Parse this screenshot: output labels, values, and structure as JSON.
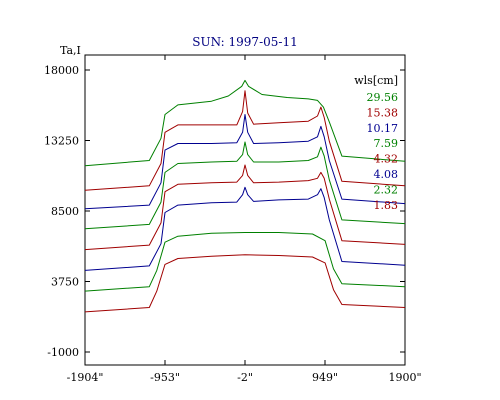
{
  "chart_data": {
    "type": "line",
    "title": "SUN: 1997-05-11",
    "ylabel": "Ta,I",
    "xlabel": "",
    "legend_title": "wls[cm]",
    "legend_position": "top-right",
    "grid": false,
    "xlim": [
      -1904,
      1900
    ],
    "ylim": [
      -1000,
      18000
    ],
    "x_ticks": [
      {
        "value": -1904,
        "label": "-1904\""
      },
      {
        "value": -953,
        "label": "-953\""
      },
      {
        "value": -2,
        "label": "-2\""
      },
      {
        "value": 949,
        "label": "949\""
      },
      {
        "value": 1900,
        "label": "1900\""
      }
    ],
    "y_ticks": [
      {
        "value": 18000,
        "label": "18000"
      },
      {
        "value": 13250,
        "label": "13250"
      },
      {
        "value": 8500,
        "label": "8500"
      },
      {
        "value": 3750,
        "label": "3750"
      },
      {
        "value": -1000,
        "label": "-1000"
      }
    ],
    "series": [
      {
        "name": "29.56",
        "color": "#008000",
        "x": [
          -1904,
          -1140,
          -1000,
          -953,
          -800,
          -400,
          -200,
          -40,
          -2,
          40,
          200,
          500,
          750,
          860,
          930,
          1000,
          1150,
          1900
        ],
        "y": [
          11550,
          11900,
          13400,
          15000,
          15650,
          15900,
          16250,
          16900,
          17300,
          16900,
          16350,
          16150,
          16050,
          15950,
          15500,
          14500,
          12200,
          11850
        ]
      },
      {
        "name": "15.38",
        "color": "#a00000",
        "x": [
          -1904,
          -1140,
          -1000,
          -953,
          -800,
          -400,
          -100,
          -30,
          -2,
          30,
          100,
          400,
          750,
          860,
          900,
          940,
          1000,
          1150,
          1900
        ],
        "y": [
          9900,
          10200,
          11700,
          13800,
          14300,
          14300,
          14300,
          15200,
          16600,
          15100,
          14350,
          14450,
          14550,
          14900,
          15500,
          14800,
          13200,
          10500,
          10200
        ]
      },
      {
        "name": "10.17",
        "color": "#000090",
        "x": [
          -1904,
          -1140,
          -1000,
          -953,
          -800,
          -400,
          -100,
          -30,
          -2,
          30,
          100,
          400,
          750,
          860,
          900,
          940,
          1000,
          1150,
          1900
        ],
        "y": [
          8650,
          8900,
          10400,
          12600,
          13050,
          13050,
          13100,
          13800,
          15000,
          13800,
          13050,
          13100,
          13200,
          13500,
          14200,
          13500,
          11900,
          9300,
          9000
        ]
      },
      {
        "name": "7.59",
        "color": "#008000",
        "x": [
          -1904,
          -1140,
          -1000,
          -953,
          -800,
          -400,
          -100,
          -30,
          -2,
          30,
          100,
          400,
          750,
          860,
          900,
          940,
          1000,
          1150,
          1900
        ],
        "y": [
          7300,
          7600,
          9100,
          11100,
          11700,
          11800,
          11850,
          12300,
          13150,
          12300,
          11800,
          11800,
          11900,
          12150,
          12800,
          12200,
          10600,
          7900,
          7650
        ]
      },
      {
        "name": "4.32",
        "color": "#a00000",
        "x": [
          -1904,
          -1140,
          -1000,
          -953,
          -800,
          -400,
          -100,
          -30,
          -2,
          30,
          100,
          400,
          750,
          860,
          900,
          940,
          1000,
          1150,
          1900
        ],
        "y": [
          5900,
          6200,
          7700,
          9800,
          10300,
          10400,
          10450,
          10900,
          11600,
          10900,
          10400,
          10450,
          10550,
          10700,
          11100,
          10700,
          9300,
          6500,
          6250
        ]
      },
      {
        "name": "4.08",
        "color": "#000090",
        "x": [
          -1904,
          -1140,
          -1000,
          -953,
          -800,
          -400,
          -100,
          -30,
          -2,
          30,
          100,
          400,
          750,
          860,
          900,
          940,
          1000,
          1150,
          1900
        ],
        "y": [
          4500,
          4800,
          6300,
          8400,
          8900,
          9050,
          9100,
          9600,
          10100,
          9600,
          9150,
          9250,
          9300,
          9600,
          10000,
          9400,
          7900,
          5100,
          4850
        ]
      },
      {
        "name": "2.32",
        "color": "#008000",
        "x": [
          -1904,
          -1140,
          -1050,
          -953,
          -800,
          -400,
          -2,
          400,
          800,
          950,
          1050,
          1150,
          1900
        ],
        "y": [
          3100,
          3400,
          4500,
          6400,
          6800,
          7000,
          7050,
          7050,
          6950,
          6500,
          4600,
          3600,
          3400
        ]
      },
      {
        "name": "1.83",
        "color": "#a00000",
        "x": [
          -1904,
          -1140,
          -1050,
          -953,
          -800,
          -400,
          -2,
          400,
          800,
          950,
          1050,
          1150,
          1900
        ],
        "y": [
          1700,
          2000,
          3100,
          4900,
          5300,
          5450,
          5550,
          5500,
          5400,
          5000,
          3200,
          2200,
          2000
        ]
      }
    ]
  }
}
